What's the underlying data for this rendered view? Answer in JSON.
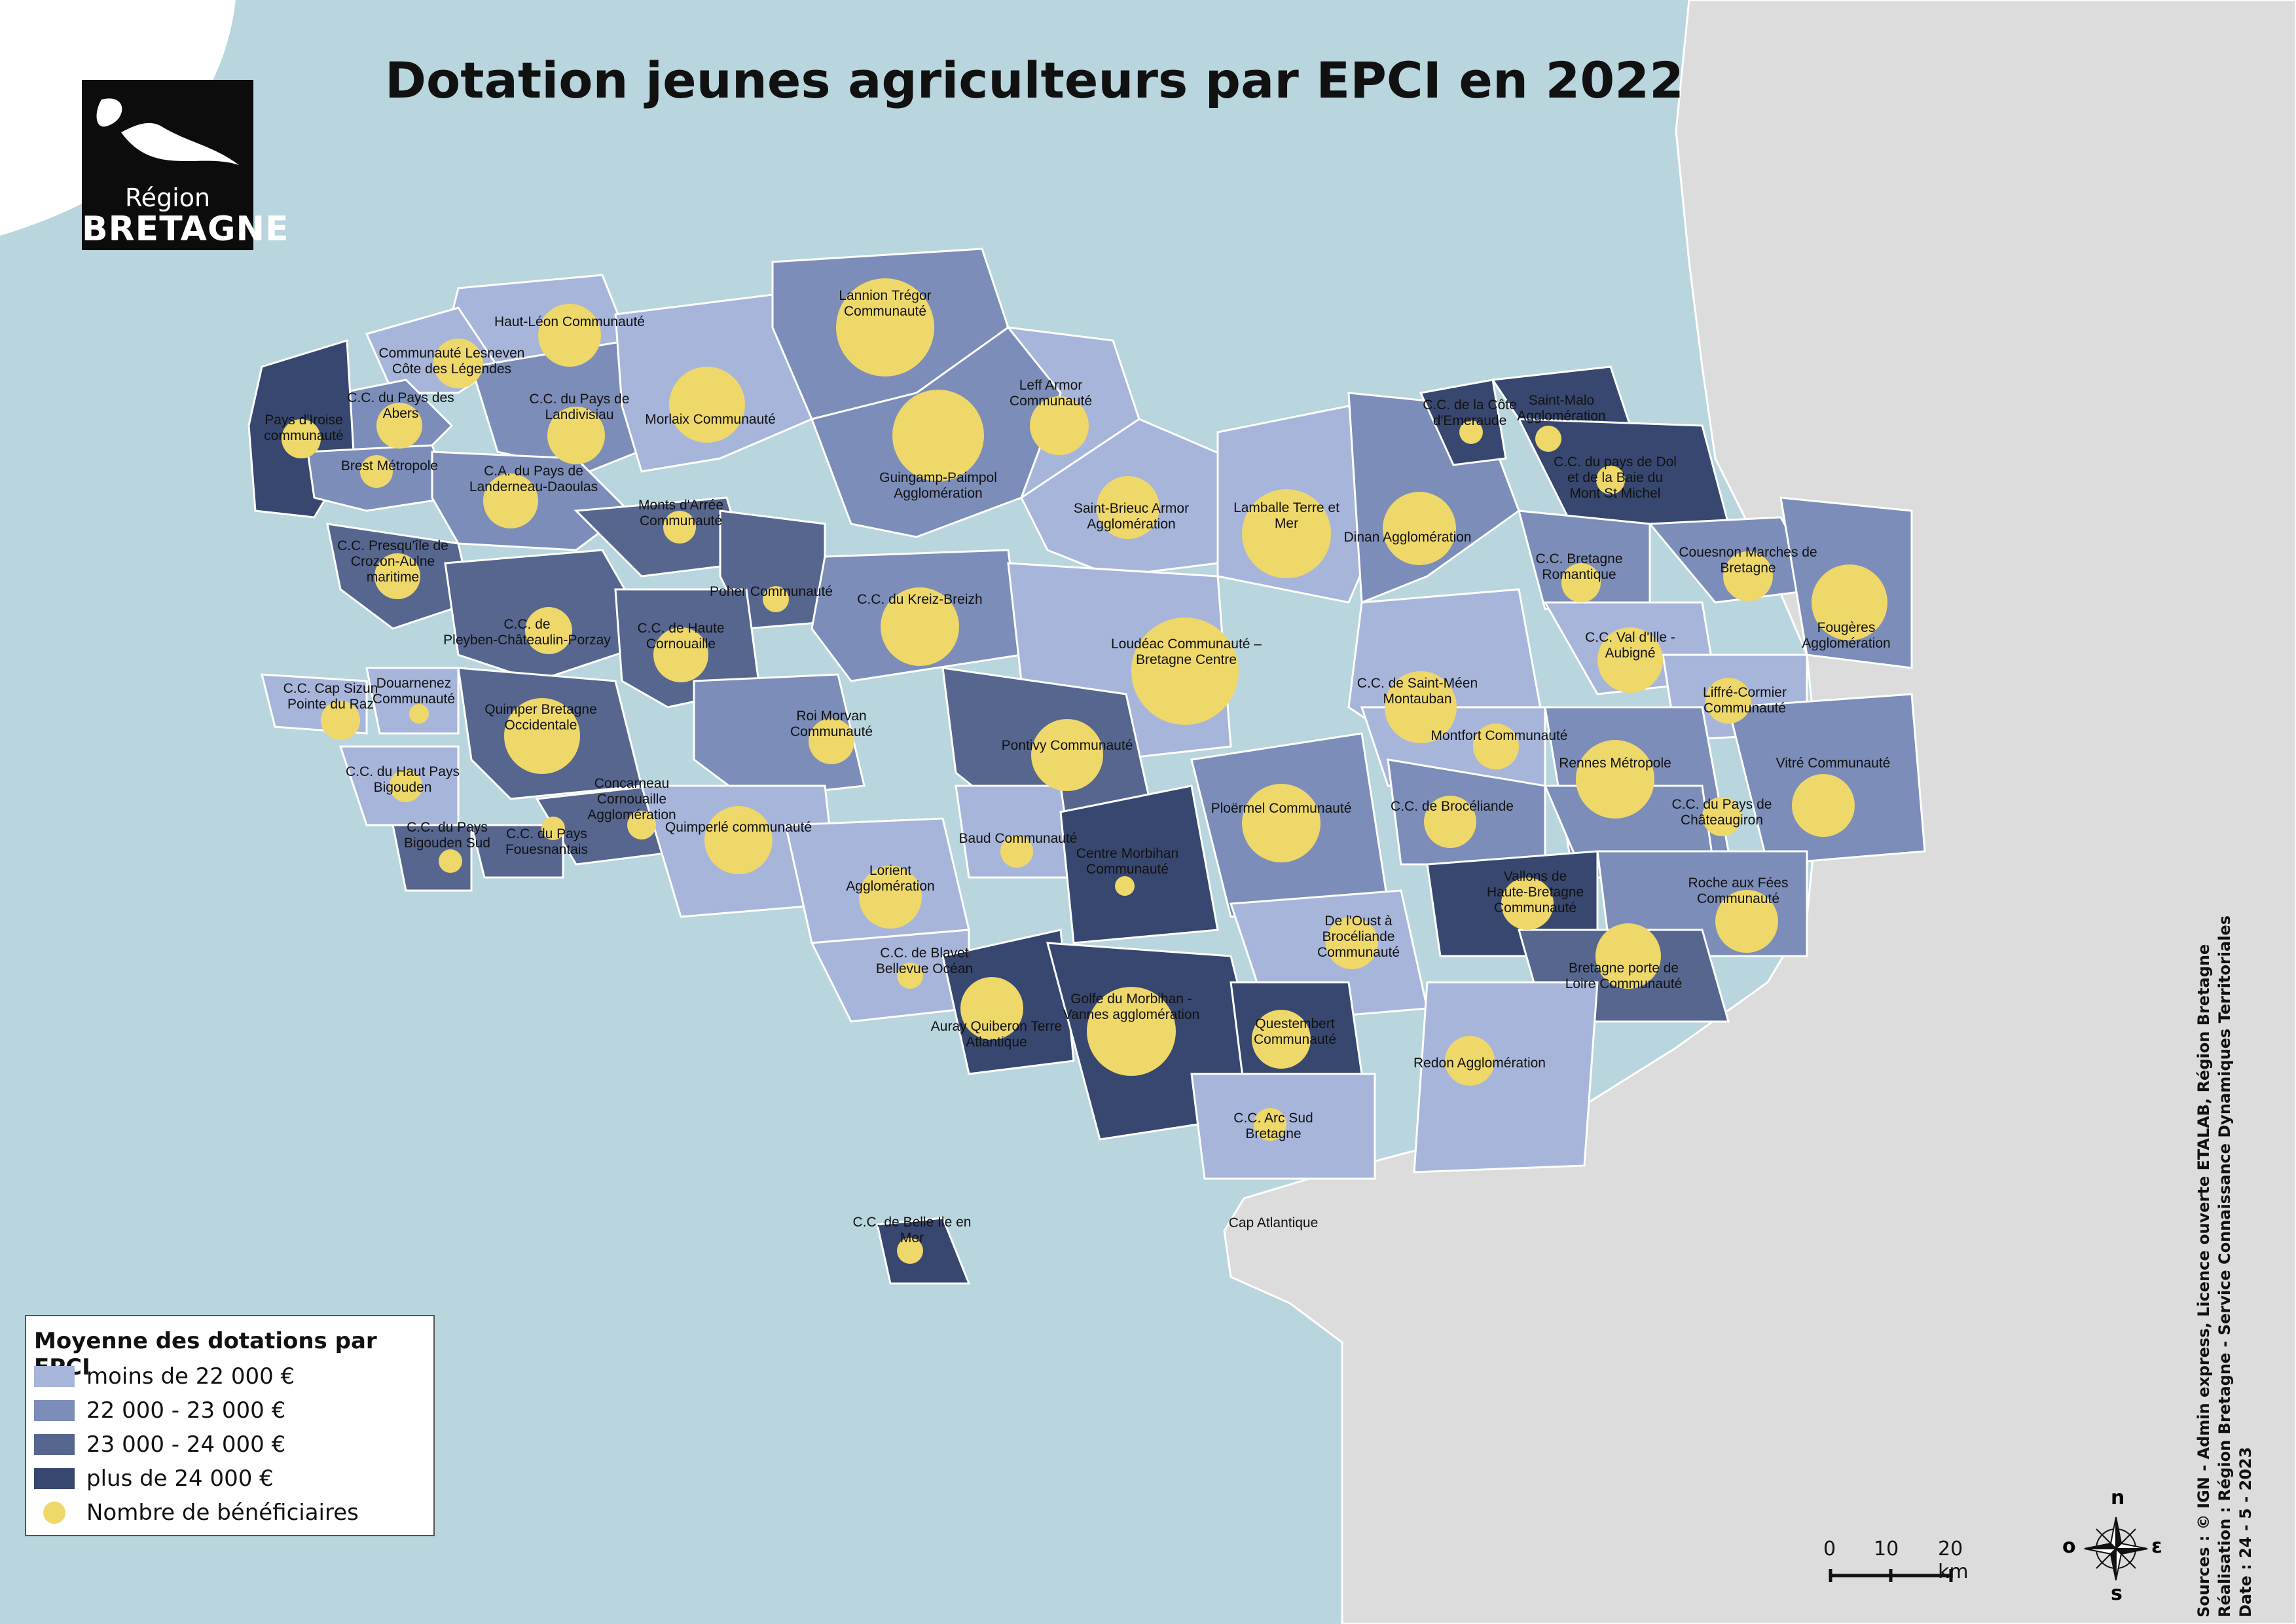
{
  "title": "Dotation jeunes agriculteurs par EPCI en 2022",
  "logo": {
    "sub": "Région",
    "main": "BRETAGNE"
  },
  "legend": {
    "title": "Moyenne des dotations par EPCI",
    "items": [
      {
        "label": "moins de 22 000 €",
        "color": "#a8b5da"
      },
      {
        "label": "22 000 - 23 000 €",
        "color": "#7b8db8"
      },
      {
        "label": "23 000 - 24 000 €",
        "color": "#56668f"
      },
      {
        "label": "plus de 24 000 €",
        "color": "#37476f"
      }
    ],
    "dot_label": "Nombre de bénéficiaires",
    "dot_color": "#eed86a"
  },
  "scale": {
    "t0": "0",
    "t1": "10",
    "t2": "20 km"
  },
  "compass": {
    "n": "n",
    "s": "s",
    "e": "ε",
    "o": "o"
  },
  "sources": {
    "line1": "Sources : © IGN - Admin express, Licence ouverte ETALAB, Région Bretagne",
    "line2": "Réalisation : Région Bretagne - Service Connaissance Dynamiques Territoriales",
    "line3": "Date : 24 - 5 - 2023"
  },
  "epci": [
    {
      "name": [
        "Haut-Léon Communauté"
      ],
      "class": 0
    },
    {
      "name": [
        "Communauté Lesneven",
        "Côte des Légendes"
      ],
      "class": 0
    },
    {
      "name": [
        "C.C. du Pays des",
        "Abers"
      ],
      "class": 1
    },
    {
      "name": [
        "Pays d'Iroise",
        "communauté"
      ],
      "class": 3
    },
    {
      "name": [
        "Brest Métropole"
      ],
      "class": 1
    },
    {
      "name": [
        "C.C. du Pays de",
        "Landivisiau"
      ],
      "class": 1
    },
    {
      "name": [
        "C.A. du Pays de",
        "Landerneau-Daoulas"
      ],
      "class": 1
    },
    {
      "name": [
        "Morlaix Communauté"
      ],
      "class": 0
    },
    {
      "name": [
        "Lannion Trégor",
        "Communauté"
      ],
      "class": 1
    },
    {
      "name": [
        "Guingamp-Paimpol",
        "Agglomération"
      ],
      "class": 1
    },
    {
      "name": [
        "Leff Armor",
        "Communauté"
      ],
      "class": 0
    },
    {
      "name": [
        "Saint-Brieuc Armor",
        "Agglomération"
      ],
      "class": 0
    },
    {
      "name": [
        "Lamballe Terre et",
        "Mer"
      ],
      "class": 0
    },
    {
      "name": [
        "Dinan Agglomération"
      ],
      "class": 1
    },
    {
      "name": [
        "C.C. de la Côte",
        "d'Emeraude"
      ],
      "class": 3
    },
    {
      "name": [
        "Saint-Malo",
        "Agglomération"
      ],
      "class": 3
    },
    {
      "name": [
        "C.C. du pays de Dol",
        "et de la Baie du",
        "Mont St Michel"
      ],
      "class": 3
    },
    {
      "name": [
        "C.C. Bretagne",
        "Romantique"
      ],
      "class": 1
    },
    {
      "name": [
        "Couesnon Marches de",
        "Bretagne"
      ],
      "class": 1
    },
    {
      "name": [
        "Fougères",
        "Agglomération"
      ],
      "class": 1
    },
    {
      "name": [
        "C.C. Presqu'île de",
        "Crozon-Aulne",
        "maritime"
      ],
      "class": 2
    },
    {
      "name": [
        "Monts d'Arrée",
        "Communauté"
      ],
      "class": 2
    },
    {
      "name": [
        "Poher Communauté"
      ],
      "class": 2
    },
    {
      "name": [
        "C.C. de",
        "Pleyben-Châteaulin-Porzay"
      ],
      "class": 2
    },
    {
      "name": [
        "C.C. de Haute",
        "Cornouaille"
      ],
      "class": 2
    },
    {
      "name": [
        "C.C. du Kreiz-Breizh"
      ],
      "class": 1
    },
    {
      "name": [
        "Loudéac Communauté –",
        "Bretagne Centre"
      ],
      "class": 0
    },
    {
      "name": [
        "C.C. de Saint-Méen",
        "Montauban"
      ],
      "class": 0
    },
    {
      "name": [
        "C.C. Val d'Ille -",
        "Aubigné"
      ],
      "class": 0
    },
    {
      "name": [
        "Liffré-Cormier",
        "Communauté"
      ],
      "class": 0
    },
    {
      "name": [
        "C.C. Cap Sizun",
        "Pointe du Raz"
      ],
      "class": 0
    },
    {
      "name": [
        "Douarnenez",
        "Communauté"
      ],
      "class": 0
    },
    {
      "name": [
        "Quimper Bretagne",
        "Occidentale"
      ],
      "class": 2
    },
    {
      "name": [
        "Roi Morvan",
        "Communauté"
      ],
      "class": 1
    },
    {
      "name": [
        "Pontivy Communauté"
      ],
      "class": 2
    },
    {
      "name": [
        "Montfort Communauté"
      ],
      "class": 0
    },
    {
      "name": [
        "Rennes Métropole"
      ],
      "class": 1
    },
    {
      "name": [
        "Vitré Communauté"
      ],
      "class": 1
    },
    {
      "name": [
        "C.C. du Haut Pays",
        "Bigouden"
      ],
      "class": 0
    },
    {
      "name": [
        "Concarneau",
        "Cornouaille",
        "Agglomération"
      ],
      "class": 2
    },
    {
      "name": [
        "Quimperlé communauté"
      ],
      "class": 0
    },
    {
      "name": [
        "C.C. du Pays",
        "Bigouden Sud"
      ],
      "class": 2
    },
    {
      "name": [
        "C.C. du Pays",
        "Fouesnantais"
      ],
      "class": 2
    },
    {
      "name": [
        "Ploërmel Communauté"
      ],
      "class": 1
    },
    {
      "name": [
        "C.C. de Brocéliande"
      ],
      "class": 1
    },
    {
      "name": [
        "C.C. du Pays de",
        "Châteaugiron"
      ],
      "class": 1
    },
    {
      "name": [
        "Lorient",
        "Agglomération"
      ],
      "class": 0
    },
    {
      "name": [
        "Baud Communauté"
      ],
      "class": 0
    },
    {
      "name": [
        "Centre Morbihan",
        "Communauté"
      ],
      "class": 3
    },
    {
      "name": [
        "Vallons de",
        "Haute-Bretagne",
        "Communauté"
      ],
      "class": 3
    },
    {
      "name": [
        "Roche aux Fées",
        "Communauté"
      ],
      "class": 1
    },
    {
      "name": [
        "De l'Oust à",
        "Brocéliande",
        "Communauté"
      ],
      "class": 0
    },
    {
      "name": [
        "C.C. de Blavet",
        "Bellevue Océan"
      ],
      "class": 0
    },
    {
      "name": [
        "Auray Quiberon Terre",
        "Atlantique"
      ],
      "class": 3
    },
    {
      "name": [
        "Golfe du Morbihan -",
        "Vannes agglomération"
      ],
      "class": 3
    },
    {
      "name": [
        "Questembert",
        "Communauté"
      ],
      "class": 3
    },
    {
      "name": [
        "Bretagne porte de",
        "Loire Communauté"
      ],
      "class": 2
    },
    {
      "name": [
        "Redon Agglomération"
      ],
      "class": 0
    },
    {
      "name": [
        "C.C. Arc Sud",
        "Bretagne"
      ],
      "class": 0
    },
    {
      "name": [
        "Cap Atlantique"
      ],
      "class": -1
    },
    {
      "name": [
        "C.C. de Belle Ile en",
        "Mer"
      ],
      "class": 3
    }
  ]
}
